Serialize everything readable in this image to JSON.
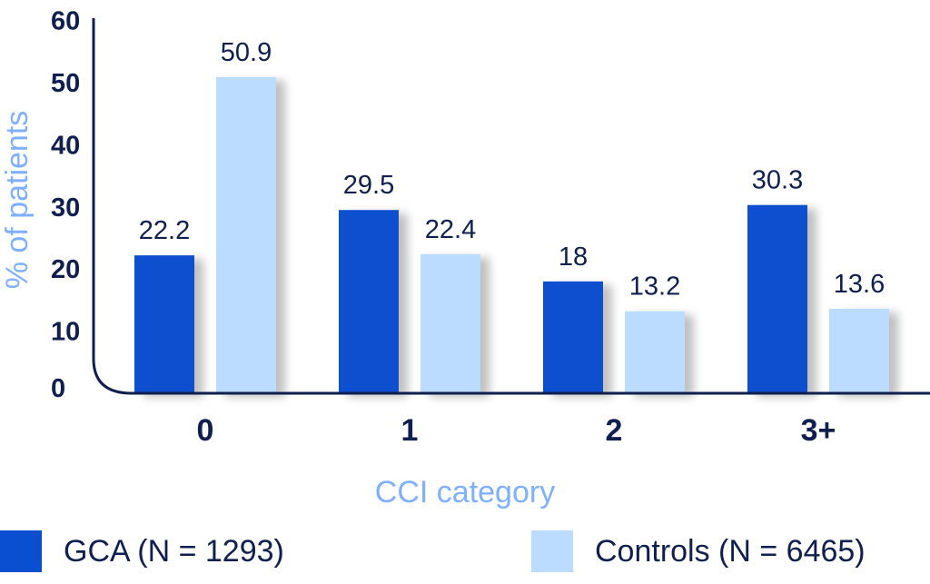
{
  "chart_data": {
    "type": "bar",
    "categories": [
      "0",
      "1",
      "2",
      "3+"
    ],
    "series": [
      {
        "name": "GCA (N = 1293)",
        "values": [
          22.2,
          29.5,
          18,
          30.3
        ],
        "color": "#0a4fcf"
      },
      {
        "name": "Controls (N = 6465)",
        "values": [
          50.9,
          22.4,
          13.2,
          13.6
        ],
        "color": "#bcdcff"
      }
    ],
    "data_labels": [
      [
        "22.2",
        "29.5",
        "18",
        "30.3"
      ],
      [
        "50.9",
        "22.4",
        "13.2",
        "13.6"
      ]
    ],
    "xlabel": "CCI category",
    "ylabel": "% of patients",
    "ylim": [
      0,
      60
    ],
    "yticks": [
      0,
      10,
      20,
      30,
      40,
      50,
      60
    ],
    "grid": false,
    "legend_position": "bottom",
    "colors": {
      "axis": "#0f1f4f",
      "axis_label": "#7fb0ff",
      "text": "#0f1f4f"
    }
  }
}
